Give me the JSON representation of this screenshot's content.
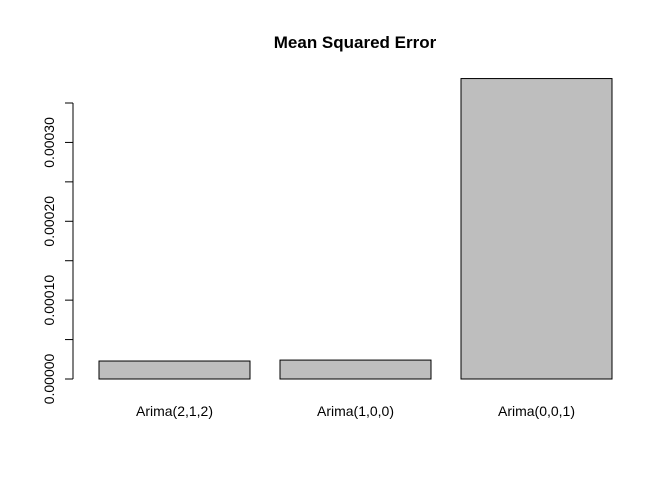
{
  "chart_data": {
    "type": "bar",
    "title": "Mean Squared Error",
    "categories": [
      "Arima(2,1,2)",
      "Arima(1,0,0)",
      "Arima(0,0,1)"
    ],
    "values": [
      2.28e-05,
      2.4e-05,
      0.000381
    ],
    "color": "#bebebe",
    "ylim": [
      0,
      0.00035
    ],
    "yticks": [
      {
        "value": 0,
        "label": "0.00000"
      },
      {
        "value": 0.0001,
        "label": "0.00010"
      },
      {
        "value": 0.0002,
        "label": "0.00020"
      },
      {
        "value": 0.0003,
        "label": "0.00030"
      }
    ],
    "yminorticks": [
      5e-05,
      0.00015,
      0.00025,
      0.00035
    ],
    "grid": false
  }
}
